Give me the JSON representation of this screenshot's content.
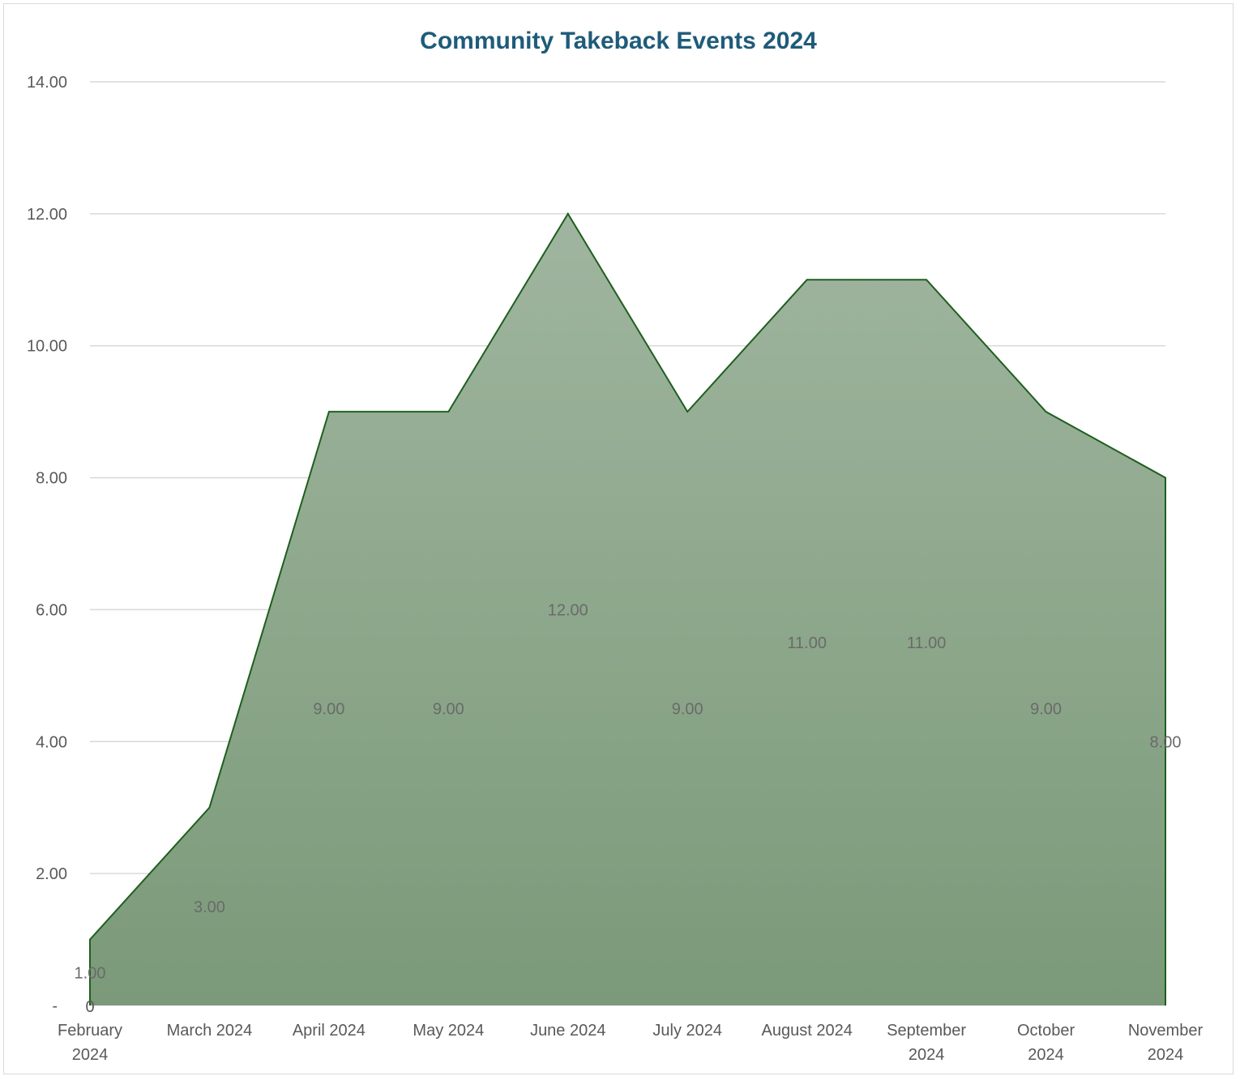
{
  "chart_data": {
    "type": "area",
    "title": "Community Takeback Events 2024",
    "xlabel": "",
    "ylabel": "",
    "categories": [
      [
        "February",
        "2024"
      ],
      [
        "March 2024"
      ],
      [
        "April 2024"
      ],
      [
        "May 2024"
      ],
      [
        "June 2024"
      ],
      [
        "July 2024"
      ],
      [
        "August 2024"
      ],
      [
        "September",
        "2024"
      ],
      [
        "October",
        "2024"
      ],
      [
        "November",
        "2024"
      ]
    ],
    "values": [
      1,
      3,
      9,
      9,
      12,
      9,
      11,
      11,
      9,
      8
    ],
    "data_labels": [
      "1.00",
      "3.00",
      "9.00",
      "9.00",
      "12.00",
      "9.00",
      "11.00",
      "11.00",
      "9.00",
      "8.00"
    ],
    "ylim": [
      0,
      14
    ],
    "yticks": [
      0,
      2,
      4,
      6,
      8,
      10,
      12,
      14
    ],
    "ytick_labels": [
      "-",
      "2.00",
      "4.00",
      "6.00",
      "8.00",
      "10.00",
      "12.00",
      "14.00"
    ],
    "origin_label": "0",
    "grid": true,
    "legend": "none",
    "colors": {
      "fill_top": "#a0b59f",
      "fill_bottom": "#7b9a79",
      "line": "#1e5f1e",
      "title": "#1f5b7a",
      "gridline": "#d9d9d9"
    }
  }
}
